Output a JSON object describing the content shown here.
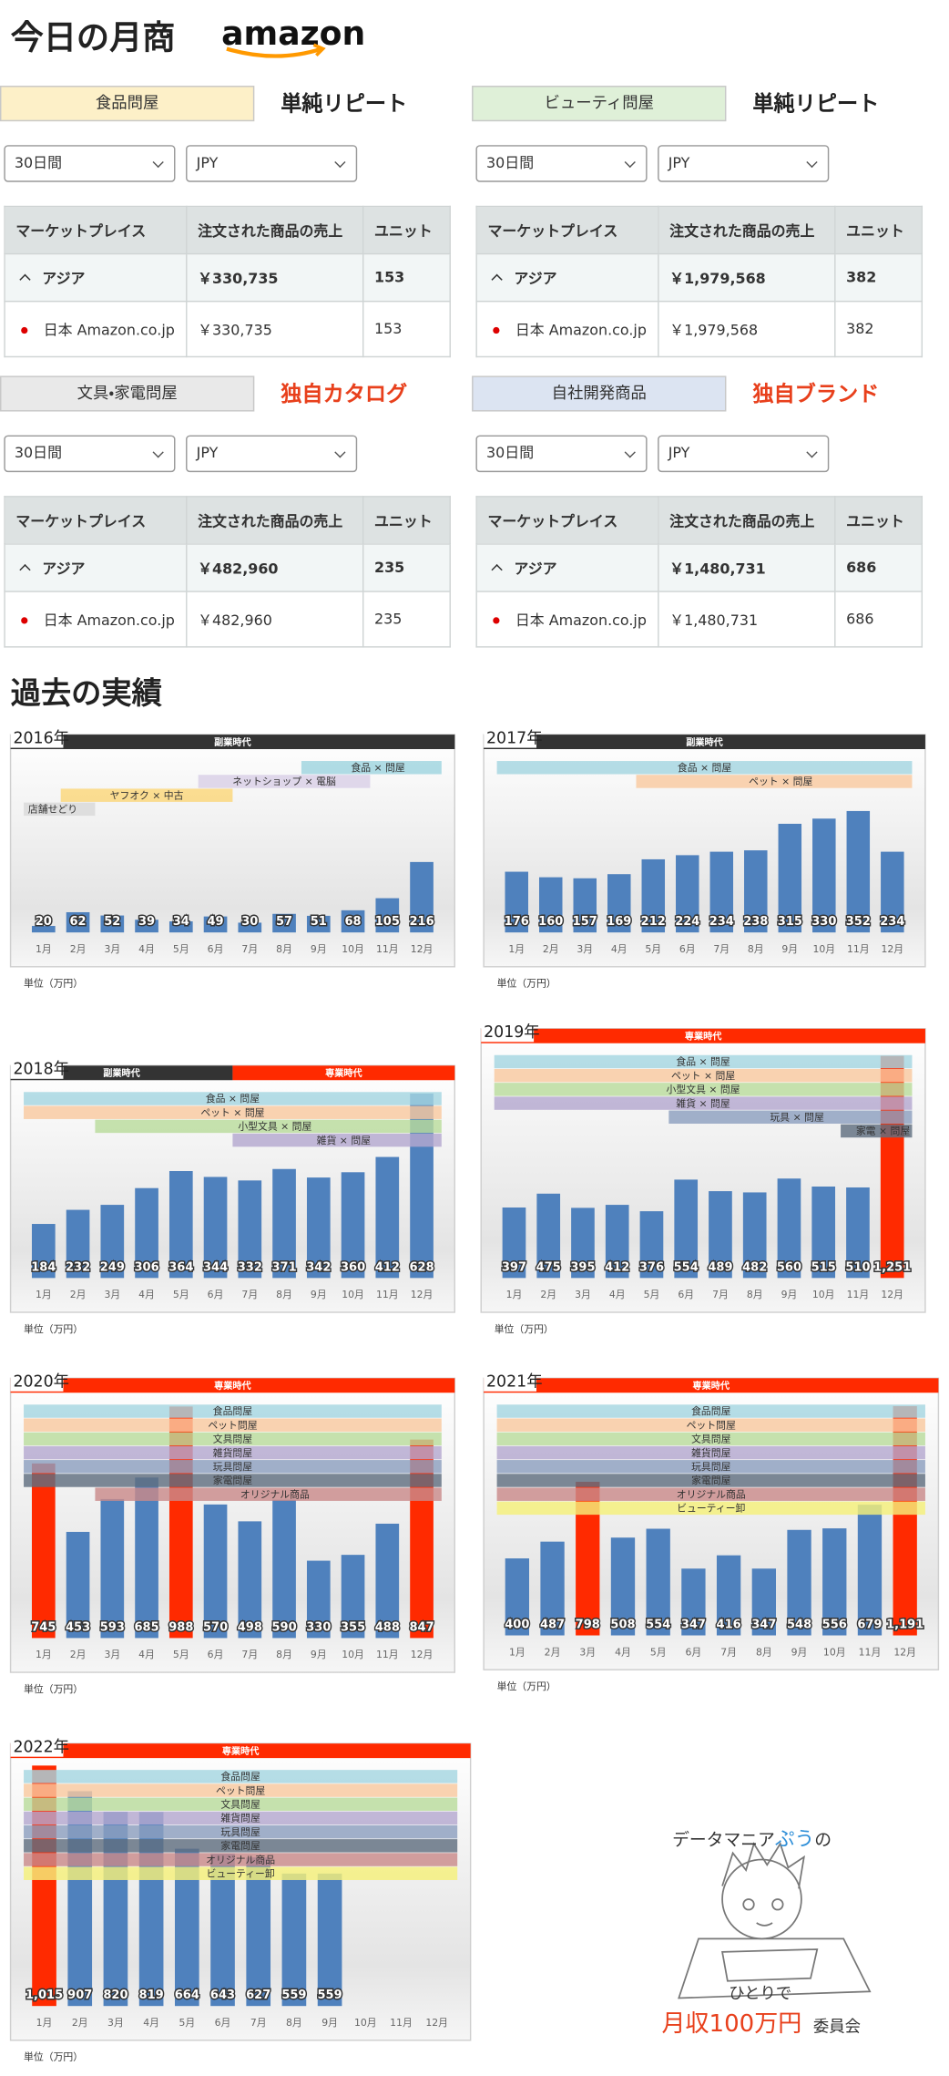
{
  "header": {
    "title": "今日の月商",
    "logo": "amazon"
  },
  "stores": [
    {
      "category": "食品問屋",
      "color": "#fdf0c8",
      "tag": "単純リピート",
      "tag_color": "#222222",
      "period": "30日間",
      "currency": "JPY",
      "columns": [
        "マーケットプレイス",
        "注文された商品の売上",
        "ユニット"
      ],
      "rows": [
        [
          "アジア",
          "￥330,735",
          "153"
        ],
        [
          "日本 Amazon.co.jp",
          "￥330,735",
          "153"
        ]
      ]
    },
    {
      "category": "ビューティ問屋",
      "color": "#dff0d8",
      "tag": "単純リピート",
      "tag_color": "#222222",
      "period": "30日間",
      "currency": "JPY",
      "columns": [
        "マーケットプレイス",
        "注文された商品の売上",
        "ユニット"
      ],
      "rows": [
        [
          "アジア",
          "￥1,979,568",
          "382"
        ],
        [
          "日本 Amazon.co.jp",
          "￥1,979,568",
          "382"
        ]
      ]
    },
    {
      "category": "文具・家電問屋",
      "color": "#e9e9e9",
      "tag": "独自カタログ",
      "tag_color": "#e8401c",
      "period": "30日間",
      "currency": "JPY",
      "columns": [
        "マーケットプレイス",
        "注文された商品の売上",
        "ユニット"
      ],
      "rows": [
        [
          "アジア",
          "￥482,960",
          "235"
        ],
        [
          "日本 Amazon.co.jp",
          "￥482,960",
          "235"
        ]
      ]
    },
    {
      "category": "自社開発商品",
      "color": "#dce4f2",
      "tag": "独自ブランド",
      "tag_color": "#e8401c",
      "period": "30日間",
      "currency": "JPY",
      "columns": [
        "マーケットプレイス",
        "注文された商品の売上",
        "ユニット"
      ],
      "rows": [
        [
          "アジア",
          "￥1,480,731",
          "686"
        ],
        [
          "日本 Amazon.co.jp",
          "￥1,480,731",
          "686"
        ]
      ]
    }
  ],
  "section_title": "過去の実績",
  "chart_data": [
    {
      "type": "bar",
      "title": "2016年",
      "eras": [
        {
          "label": "副業時代",
          "color": "#333333",
          "from": "1月",
          "to": "12月"
        }
      ],
      "categories": [
        "1月",
        "2月",
        "3月",
        "4月",
        "5月",
        "6月",
        "7月",
        "8月",
        "9月",
        "10月",
        "11月",
        "12月"
      ],
      "values": [
        20,
        62,
        52,
        39,
        34,
        49,
        30,
        57,
        51,
        68,
        105,
        216
      ],
      "colors": [
        "#4f81bd",
        "#4f81bd",
        "#4f81bd",
        "#4f81bd",
        "#4f81bd",
        "#4f81bd",
        "#4f81bd",
        "#4f81bd",
        "#4f81bd",
        "#4f81bd",
        "#4f81bd",
        "#4f81bd"
      ],
      "ylim": [
        0,
        550
      ],
      "bands": [
        {
          "label": "食品 × 問屋",
          "color": "#9fd4df",
          "from": "9月",
          "to": "12月"
        },
        {
          "label": "ネットショップ × 電脳",
          "color": "#d9cfe6",
          "from": "6月",
          "to": "10月"
        },
        {
          "label": "ヤフオク × 中古",
          "color": "#fbd77a",
          "from": "2月",
          "to": "6月"
        },
        {
          "label": "店舗せどり",
          "color": "#d9d9d9",
          "from": "1月",
          "to": "2月"
        }
      ],
      "note": "単位（万円）"
    },
    {
      "type": "bar",
      "title": "2017年",
      "eras": [
        {
          "label": "副業時代",
          "color": "#333333",
          "from": "1月",
          "to": "12月"
        }
      ],
      "categories": [
        "1月",
        "2月",
        "3月",
        "4月",
        "5月",
        "6月",
        "7月",
        "8月",
        "9月",
        "10月",
        "11月",
        "12月"
      ],
      "values": [
        176,
        160,
        157,
        169,
        212,
        224,
        234,
        238,
        315,
        330,
        352,
        234
      ],
      "colors": [
        "#4f81bd",
        "#4f81bd",
        "#4f81bd",
        "#4f81bd",
        "#4f81bd",
        "#4f81bd",
        "#4f81bd",
        "#4f81bd",
        "#4f81bd",
        "#4f81bd",
        "#4f81bd",
        "#4f81bd"
      ],
      "ylim": [
        0,
        520
      ],
      "bands": [
        {
          "label": "食品 × 問屋",
          "color": "#a5d5e0",
          "from": "1月",
          "to": "12月"
        },
        {
          "label": "ペット × 問屋",
          "color": "#f9c9a0",
          "from": "5月",
          "to": "12月"
        }
      ],
      "note": "単位（万円）"
    },
    {
      "type": "bar",
      "title": "2018年",
      "eras": [
        {
          "label": "副業時代",
          "color": "#333333",
          "from": "1月",
          "to": "6月"
        },
        {
          "label": "専業時代",
          "color": "#ff2a00",
          "from": "7月",
          "to": "12月"
        }
      ],
      "categories": [
        "1月",
        "2月",
        "3月",
        "4月",
        "5月",
        "6月",
        "7月",
        "8月",
        "9月",
        "10月",
        "11月",
        "12月"
      ],
      "values": [
        184,
        232,
        249,
        306,
        364,
        344,
        332,
        371,
        342,
        360,
        412,
        628
      ],
      "colors": [
        "#4f81bd",
        "#4f81bd",
        "#4f81bd",
        "#4f81bd",
        "#4f81bd",
        "#4f81bd",
        "#4f81bd",
        "#4f81bd",
        "#4f81bd",
        "#4f81bd",
        "#4f81bd",
        "#4f81bd"
      ],
      "ylim": [
        0,
        660
      ],
      "bands": [
        {
          "label": "食品 × 問屋",
          "color": "#a5d5e0",
          "from": "1月",
          "to": "12月"
        },
        {
          "label": "ペット × 問屋",
          "color": "#f9c9a0",
          "from": "1月",
          "to": "12月"
        },
        {
          "label": "小型文具 × 問屋",
          "color": "#b9dc9c",
          "from": "3月",
          "to": "12月"
        },
        {
          "label": "雑貨 × 問屋",
          "color": "#b4a8d0",
          "from": "7月",
          "to": "12月"
        }
      ],
      "note": "単位（万円）"
    },
    {
      "type": "bar",
      "title": "2019年",
      "eras": [
        {
          "label": "専業時代",
          "color": "#ff2a00",
          "from": "1月",
          "to": "12月"
        }
      ],
      "categories": [
        "1月",
        "2月",
        "3月",
        "4月",
        "5月",
        "6月",
        "7月",
        "8月",
        "9月",
        "10月",
        "11月",
        "12月"
      ],
      "values": [
        397,
        475,
        395,
        412,
        376,
        554,
        489,
        482,
        560,
        515,
        510,
        1251
      ],
      "value_labels": [
        "397",
        "475",
        "395",
        "412",
        "376",
        "554",
        "489",
        "482",
        "560",
        "515",
        "510",
        "1,251"
      ],
      "colors": [
        "#4f81bd",
        "#4f81bd",
        "#4f81bd",
        "#4f81bd",
        "#4f81bd",
        "#4f81bd",
        "#4f81bd",
        "#4f81bd",
        "#4f81bd",
        "#4f81bd",
        "#4f81bd",
        "#ff2a00"
      ],
      "ylim": [
        0,
        1300
      ],
      "bands": [
        {
          "label": "食品 × 問屋",
          "color": "#a5d5e0",
          "from": "1月",
          "to": "12月"
        },
        {
          "label": "ペット × 問屋",
          "color": "#f9c9a0",
          "from": "1月",
          "to": "12月"
        },
        {
          "label": "小型文具 × 問屋",
          "color": "#b9dc9c",
          "from": "1月",
          "to": "12月"
        },
        {
          "label": "雑貨 × 問屋",
          "color": "#b4a8d0",
          "from": "1月",
          "to": "12月"
        },
        {
          "label": "玩具 × 問屋",
          "color": "#8ea0c0",
          "from": "6月",
          "to": "12月"
        },
        {
          "label": "家電 × 問屋",
          "color": "#606f80",
          "from": "11月",
          "to": "12月"
        }
      ],
      "note": "単位（万円）"
    },
    {
      "type": "bar",
      "title": "2020年",
      "eras": [
        {
          "label": "専業時代",
          "color": "#ff2a00",
          "from": "1月",
          "to": "12月"
        }
      ],
      "categories": [
        "1月",
        "2月",
        "3月",
        "4月",
        "5月",
        "6月",
        "7月",
        "8月",
        "9月",
        "10月",
        "11月",
        "12月"
      ],
      "values": [
        745,
        453,
        593,
        685,
        988,
        570,
        498,
        590,
        330,
        355,
        488,
        847
      ],
      "colors": [
        "#ff2a00",
        "#4f81bd",
        "#4f81bd",
        "#4f81bd",
        "#ff2a00",
        "#4f81bd",
        "#4f81bd",
        "#4f81bd",
        "#4f81bd",
        "#4f81bd",
        "#4f81bd",
        "#ff2a00"
      ],
      "ylim": [
        0,
        1030
      ],
      "bands": [
        {
          "label": "食品問屋",
          "color": "#a5d5e0",
          "from": "1月",
          "to": "12月"
        },
        {
          "label": "ペット問屋",
          "color": "#f9c9a0",
          "from": "1月",
          "to": "12月"
        },
        {
          "label": "文具問屋",
          "color": "#b9dc9c",
          "from": "1月",
          "to": "12月"
        },
        {
          "label": "雑貨問屋",
          "color": "#b4a8d0",
          "from": "1月",
          "to": "12月"
        },
        {
          "label": "玩具問屋",
          "color": "#8ea0c0",
          "from": "1月",
          "to": "12月"
        },
        {
          "label": "家電問屋",
          "color": "#606f80",
          "from": "1月",
          "to": "12月"
        },
        {
          "label": "オリジナル商品",
          "color": "#c98a8a",
          "from": "3月",
          "to": "12月"
        }
      ],
      "note": "単位（万円）"
    },
    {
      "type": "bar",
      "title": "2021年",
      "eras": [
        {
          "label": "専業時代",
          "color": "#ff2a00",
          "from": "1月",
          "to": "12月"
        }
      ],
      "categories": [
        "1月",
        "2月",
        "3月",
        "4月",
        "5月",
        "6月",
        "7月",
        "8月",
        "9月",
        "10月",
        "11月",
        "12月"
      ],
      "values": [
        400,
        487,
        798,
        508,
        554,
        347,
        416,
        347,
        548,
        556,
        679,
        1191
      ],
      "value_labels": [
        "400",
        "487",
        "798",
        "508",
        "554",
        "347",
        "416",
        "347",
        "548",
        "556",
        "679",
        "1,191"
      ],
      "colors": [
        "#4f81bd",
        "#4f81bd",
        "#ff2a00",
        "#4f81bd",
        "#4f81bd",
        "#4f81bd",
        "#4f81bd",
        "#4f81bd",
        "#4f81bd",
        "#4f81bd",
        "#4f81bd",
        "#ff2a00"
      ],
      "ylim": [
        0,
        1240
      ],
      "bands": [
        {
          "label": "食品問屋",
          "color": "#a5d5e0",
          "from": "1月",
          "to": "12月"
        },
        {
          "label": "ペット問屋",
          "color": "#f9c9a0",
          "from": "1月",
          "to": "12月"
        },
        {
          "label": "文具問屋",
          "color": "#b9dc9c",
          "from": "1月",
          "to": "12月"
        },
        {
          "label": "雑貨問屋",
          "color": "#b4a8d0",
          "from": "1月",
          "to": "12月"
        },
        {
          "label": "玩具問屋",
          "color": "#8ea0c0",
          "from": "1月",
          "to": "12月"
        },
        {
          "label": "家電問屋",
          "color": "#606f80",
          "from": "1月",
          "to": "12月"
        },
        {
          "label": "オリジナル商品",
          "color": "#c98a8a",
          "from": "1月",
          "to": "12月"
        },
        {
          "label": "ビューティー卸",
          "color": "#f5f07a",
          "from": "1月",
          "to": "12月"
        }
      ],
      "note": "単位（万円）"
    },
    {
      "type": "bar",
      "title": "2022年",
      "eras": [
        {
          "label": "専業時代",
          "color": "#ff2a00",
          "from": "1月",
          "to": "12月"
        }
      ],
      "categories": [
        "1月",
        "2月",
        "3月",
        "4月",
        "5月",
        "6月",
        "7月",
        "8月",
        "9月",
        "10月",
        "11月",
        "12月"
      ],
      "values": [
        1015,
        907,
        820,
        819,
        664,
        643,
        627,
        559,
        559,
        null,
        null,
        null
      ],
      "value_labels": [
        "1,015",
        "907",
        "820",
        "819",
        "664",
        "643",
        "627",
        "559",
        "559",
        null,
        null,
        null
      ],
      "colors": [
        "#ff2a00",
        "#4f81bd",
        "#4f81bd",
        "#4f81bd",
        "#4f81bd",
        "#4f81bd",
        "#4f81bd",
        "#4f81bd",
        "#4f81bd",
        "#4f81bd",
        "#4f81bd",
        "#4f81bd"
      ],
      "ylim": [
        0,
        1030
      ],
      "bands": [
        {
          "label": "食品問屋",
          "color": "#a5d5e0",
          "from": "1月",
          "to": "12月"
        },
        {
          "label": "ペット問屋",
          "color": "#f9c9a0",
          "from": "1月",
          "to": "12月"
        },
        {
          "label": "文具問屋",
          "color": "#b9dc9c",
          "from": "1月",
          "to": "12月"
        },
        {
          "label": "雑貨問屋",
          "color": "#b4a8d0",
          "from": "1月",
          "to": "12月"
        },
        {
          "label": "玩具問屋",
          "color": "#8ea0c0",
          "from": "1月",
          "to": "12月"
        },
        {
          "label": "家電問屋",
          "color": "#606f80",
          "from": "1月",
          "to": "12月"
        },
        {
          "label": "オリジナル商品",
          "color": "#c98a8a",
          "from": "1月",
          "to": "12月"
        },
        {
          "label": "ビューティー卸",
          "color": "#f5f07a",
          "from": "1月",
          "to": "12月"
        }
      ],
      "note": "単位（万円）"
    }
  ],
  "footer": {
    "prefix": "データマニア",
    "name": "ぷう",
    "suffix": "の",
    "line2": "ひとりで",
    "big": "月収100万円",
    "tail": "委員会"
  }
}
